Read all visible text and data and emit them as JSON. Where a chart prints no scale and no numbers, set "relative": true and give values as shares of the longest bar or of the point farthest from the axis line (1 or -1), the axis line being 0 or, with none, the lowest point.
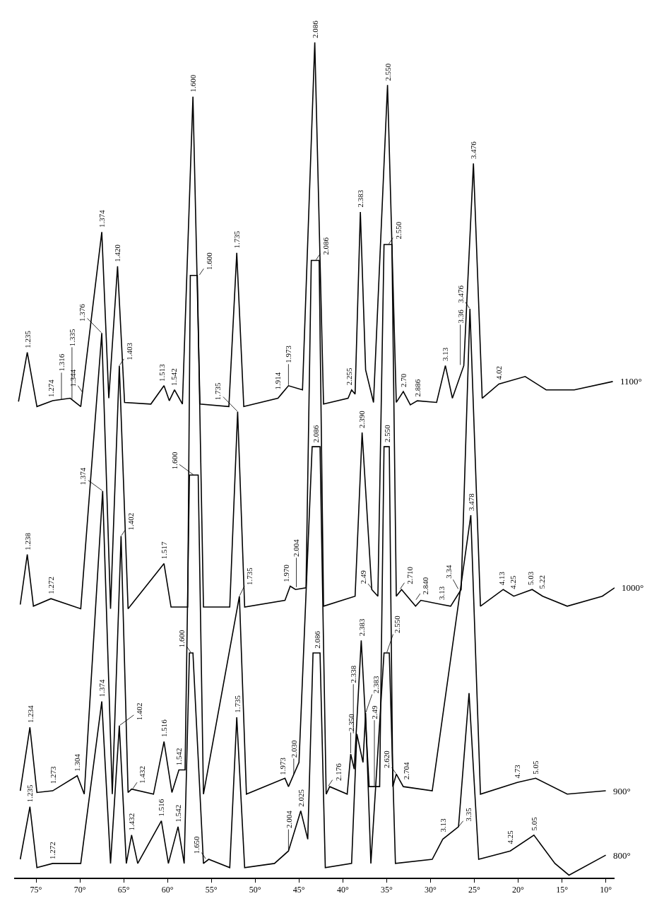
{
  "chart_data": {
    "type": "line",
    "relative": true,
    "legend": false,
    "marker": "none",
    "line_style": "solid",
    "xlim": [
      77.5,
      9
    ],
    "xticks": [
      {
        "value": 75,
        "label": "75°"
      },
      {
        "value": 70,
        "label": "70°"
      },
      {
        "value": 65,
        "label": "65°"
      },
      {
        "value": 60,
        "label": "60°"
      },
      {
        "value": 55,
        "label": "55°"
      },
      {
        "value": 50,
        "label": "50°"
      },
      {
        "value": 45,
        "label": "45°"
      },
      {
        "value": 40,
        "label": "40°"
      },
      {
        "value": 35,
        "label": "35°"
      },
      {
        "value": 30,
        "label": "30°"
      },
      {
        "value": 25,
        "label": "25°"
      },
      {
        "value": 20,
        "label": "20°"
      },
      {
        "value": 15,
        "label": "15°"
      },
      {
        "value": 10,
        "label": "10°"
      }
    ],
    "series": [
      {
        "name": "1100°",
        "color": "#000000",
        "x": [
          77.0,
          76.0,
          74.9,
          73.1,
          71.1,
          69.9,
          67.5,
          66.7,
          65.7,
          64.9,
          61.9,
          60.4,
          59.8,
          59.2,
          58.3,
          57.1,
          56.3,
          53.0,
          52.1,
          51.3,
          47.4,
          47.0,
          46.2,
          44.6,
          43.2,
          42.2,
          39.4,
          39.0,
          38.6,
          38.0,
          37.4,
          36.5,
          34.9,
          33.9,
          33.1,
          32.3,
          31.5,
          29.3,
          28.3,
          27.5,
          26.2,
          25.1,
          24.1,
          22.2,
          19.2,
          16.8,
          13.6,
          9.2
        ],
        "values": [
          0.57,
          0.629,
          0.564,
          0.571,
          0.574,
          0.564,
          0.773,
          0.574,
          0.732,
          0.569,
          0.567,
          0.589,
          0.571,
          0.584,
          0.567,
          0.935,
          0.567,
          0.564,
          0.748,
          0.564,
          0.574,
          0.579,
          0.589,
          0.584,
          1.0,
          0.567,
          0.574,
          0.584,
          0.579,
          0.797,
          0.608,
          0.569,
          0.949,
          0.569,
          0.582,
          0.566,
          0.571,
          0.569,
          0.613,
          0.574,
          0.613,
          0.855,
          0.574,
          0.591,
          0.6,
          0.584,
          0.584,
          0.594
        ]
      },
      {
        "name": "1000°",
        "color": "#000000",
        "x": [
          76.8,
          76.0,
          75.3,
          73.3,
          69.9,
          67.5,
          66.5,
          65.5,
          64.5,
          60.4,
          59.6,
          57.7,
          57.4,
          56.6,
          55.9,
          52.9,
          52.0,
          51.2,
          46.6,
          46.0,
          45.4,
          44.2,
          43.6,
          42.7,
          42.2,
          38.6,
          37.8,
          36.7,
          36.0,
          35.3,
          34.4,
          33.9,
          33.3,
          31.7,
          31.1,
          28.7,
          27.7,
          26.5,
          25.5,
          24.3,
          21.7,
          20.5,
          18.4,
          17.2,
          14.4,
          10.4,
          9.0
        ],
        "values": [
          0.327,
          0.387,
          0.325,
          0.334,
          0.322,
          0.652,
          0.322,
          0.613,
          0.322,
          0.376,
          0.324,
          0.324,
          0.721,
          0.721,
          0.324,
          0.324,
          0.558,
          0.324,
          0.332,
          0.349,
          0.345,
          0.347,
          0.739,
          0.739,
          0.325,
          0.337,
          0.533,
          0.345,
          0.337,
          0.758,
          0.758,
          0.337,
          0.345,
          0.325,
          0.332,
          0.327,
          0.325,
          0.345,
          0.681,
          0.325,
          0.345,
          0.337,
          0.345,
          0.337,
          0.325,
          0.337,
          0.347
        ]
      },
      {
        "name": "900°",
        "color": "#000000",
        "x": [
          76.8,
          75.7,
          74.9,
          73.1,
          70.3,
          69.5,
          67.4,
          66.3,
          65.3,
          64.5,
          64.1,
          61.6,
          60.4,
          59.5,
          58.7,
          58.0,
          57.5,
          56.5,
          55.9,
          51.8,
          51.0,
          46.6,
          46.2,
          45.0,
          43.5,
          42.6,
          41.9,
          41.5,
          39.5,
          39.1,
          38.7,
          37.9,
          37.0,
          35.8,
          35.3,
          34.7,
          34.3,
          33.9,
          33.1,
          29.8,
          25.4,
          24.3,
          20.1,
          18.0,
          14.4,
          10.0
        ],
        "values": [
          0.104,
          0.18,
          0.102,
          0.104,
          0.122,
          0.1,
          0.463,
          0.1,
          0.409,
          0.102,
          0.106,
          0.1,
          0.163,
          0.102,
          0.129,
          0.129,
          0.482,
          0.482,
          0.1,
          0.337,
          0.1,
          0.119,
          0.109,
          0.138,
          0.516,
          0.516,
          0.1,
          0.109,
          0.1,
          0.148,
          0.13,
          0.284,
          0.109,
          0.109,
          0.516,
          0.516,
          0.109,
          0.124,
          0.109,
          0.104,
          0.434,
          0.1,
          0.114,
          0.119,
          0.1,
          0.104
        ]
      },
      {
        "name": "800°",
        "color": "#000000",
        "x": [
          76.8,
          75.7,
          74.9,
          73.1,
          69.9,
          67.5,
          66.5,
          65.5,
          64.7,
          64.1,
          63.4,
          60.7,
          59.9,
          58.8,
          58.1,
          57.5,
          57.1,
          55.9,
          55.3,
          52.9,
          52.1,
          51.2,
          47.8,
          46.2,
          44.8,
          44.0,
          43.4,
          42.6,
          42.0,
          39.0,
          38.4,
          37.7,
          37.4,
          36.8,
          35.3,
          34.7,
          34.0,
          29.8,
          28.6,
          26.8,
          25.6,
          24.5,
          20.9,
          18.2,
          15.8,
          14.2,
          10.0
        ],
        "values": [
          0.022,
          0.085,
          0.012,
          0.017,
          0.017,
          0.211,
          0.017,
          0.182,
          0.017,
          0.051,
          0.017,
          0.068,
          0.017,
          0.061,
          0.017,
          0.269,
          0.269,
          0.017,
          0.022,
          0.012,
          0.192,
          0.012,
          0.017,
          0.032,
          0.08,
          0.046,
          0.269,
          0.269,
          0.012,
          0.017,
          0.172,
          0.138,
          0.197,
          0.017,
          0.269,
          0.269,
          0.017,
          0.022,
          0.046,
          0.061,
          0.221,
          0.022,
          0.032,
          0.051,
          0.017,
          0.003,
          0.027
        ]
      }
    ],
    "annotations": [
      {
        "text": "1.235",
        "x": 76.0,
        "y": 0.629
      },
      {
        "text": "1.274",
        "x": 73.3,
        "y": 0.57
      },
      {
        "text": "1.316",
        "x": 72.1,
        "y": 0.572
      },
      {
        "text": "1.335",
        "x": 70.9,
        "y": 0.572
      },
      {
        "text": "1.344",
        "x": 69.7,
        "y": 0.581
      },
      {
        "text": "1.374",
        "x": 67.5,
        "y": 0.773
      },
      {
        "text": "1.420",
        "x": 65.7,
        "y": 0.732
      },
      {
        "text": "1.513",
        "x": 60.6,
        "y": 0.589
      },
      {
        "text": "1.542",
        "x": 59.3,
        "y": 0.584
      },
      {
        "text": "1.600",
        "x": 57.1,
        "y": 0.935
      },
      {
        "text": "1.735",
        "x": 52.1,
        "y": 0.748
      },
      {
        "text": "1.914",
        "x": 47.4,
        "y": 0.579
      },
      {
        "text": "1.973",
        "x": 46.2,
        "y": 0.589
      },
      {
        "text": "2.086",
        "x": 43.2,
        "y": 1.0
      },
      {
        "text": "2.255",
        "x": 39.3,
        "y": 0.584
      },
      {
        "text": "2.383",
        "x": 38.0,
        "y": 0.797
      },
      {
        "text": "2.550",
        "x": 34.9,
        "y": 0.949
      },
      {
        "text": "2.70",
        "x": 33.1,
        "y": 0.582
      },
      {
        "text": "2.886",
        "x": 31.5,
        "y": 0.571
      },
      {
        "text": "3.13",
        "x": 28.3,
        "y": 0.613
      },
      {
        "text": "3.36",
        "x": 26.6,
        "y": 0.613
      },
      {
        "text": "3.476",
        "x": 25.1,
        "y": 0.855
      },
      {
        "text": "4.02",
        "x": 22.2,
        "y": 0.591
      },
      {
        "text": "1.238",
        "x": 76.0,
        "y": 0.387
      },
      {
        "text": "1.272",
        "x": 73.3,
        "y": 0.334
      },
      {
        "text": "1.376",
        "x": 67.5,
        "y": 0.652
      },
      {
        "text": "1.403",
        "x": 65.5,
        "y": 0.613
      },
      {
        "text": "1.517",
        "x": 60.4,
        "y": 0.376
      },
      {
        "text": "1.600",
        "x": 56.4,
        "y": 0.721
      },
      {
        "text": "1.735",
        "x": 52.0,
        "y": 0.558
      },
      {
        "text": "1.970",
        "x": 46.5,
        "y": 0.349
      },
      {
        "text": "2.004",
        "x": 45.3,
        "y": 0.347
      },
      {
        "text": "2.086",
        "x": 43.1,
        "y": 0.739
      },
      {
        "text": "2.390",
        "x": 37.8,
        "y": 0.533
      },
      {
        "text": "2.49",
        "x": 36.6,
        "y": 0.345
      },
      {
        "text": "2.550",
        "x": 34.8,
        "y": 0.758
      },
      {
        "text": "2.710",
        "x": 33.5,
        "y": 0.345
      },
      {
        "text": "2.840",
        "x": 31.7,
        "y": 0.332
      },
      {
        "text": "3.13",
        "x": 28.7,
        "y": 0.327
      },
      {
        "text": "3.34",
        "x": 26.8,
        "y": 0.345
      },
      {
        "text": "3.476",
        "x": 25.5,
        "y": 0.681
      },
      {
        "text": "4.13",
        "x": 21.9,
        "y": 0.345
      },
      {
        "text": "4.25",
        "x": 20.6,
        "y": 0.337
      },
      {
        "text": "5.03",
        "x": 18.6,
        "y": 0.345
      },
      {
        "text": "5.22",
        "x": 17.3,
        "y": 0.337
      },
      {
        "text": "1.234",
        "x": 75.7,
        "y": 0.18
      },
      {
        "text": "1.273",
        "x": 73.1,
        "y": 0.104
      },
      {
        "text": "1.304",
        "x": 70.3,
        "y": 0.122
      },
      {
        "text": "1.374",
        "x": 67.4,
        "y": 0.463
      },
      {
        "text": "1.402",
        "x": 65.3,
        "y": 0.409
      },
      {
        "text": "1.432",
        "x": 64.0,
        "y": 0.106
      },
      {
        "text": "1.516",
        "x": 60.4,
        "y": 0.163
      },
      {
        "text": "1.542",
        "x": 58.7,
        "y": 0.129
      },
      {
        "text": "1.600",
        "x": 57.0,
        "y": 0.482
      },
      {
        "text": "1.735",
        "x": 51.8,
        "y": 0.337
      },
      {
        "text": "1.973",
        "x": 46.9,
        "y": 0.118
      },
      {
        "text": "2.030",
        "x": 45.6,
        "y": 0.1235
      },
      {
        "text": "2.086",
        "x": 43.1,
        "y": 0.516
      },
      {
        "text": "2.176",
        "x": 41.7,
        "y": 0.109
      },
      {
        "text": "2.350",
        "x": 39.1,
        "y": 0.148
      },
      {
        "text": "2.383",
        "x": 37.9,
        "y": 0.284
      },
      {
        "text": "2.49",
        "x": 36.4,
        "y": 0.109
      },
      {
        "text": "2.550",
        "x": 35.0,
        "y": 0.516
      },
      {
        "text": "2.620",
        "x": 33.9,
        "y": 0.124
      },
      {
        "text": "2.704",
        "x": 32.8,
        "y": 0.109
      },
      {
        "text": "3.478",
        "x": 25.4,
        "y": 0.434
      },
      {
        "text": "4.73",
        "x": 20.1,
        "y": 0.114
      },
      {
        "text": "5.05",
        "x": 18.0,
        "y": 0.119
      },
      {
        "text": "1.235",
        "x": 75.7,
        "y": 0.085
      },
      {
        "text": "1.272",
        "x": 73.1,
        "y": 0.017
      },
      {
        "text": "1.374",
        "x": 67.5,
        "y": 0.211
      },
      {
        "text": "1.402",
        "x": 65.5,
        "y": 0.182
      },
      {
        "text": "1.432",
        "x": 64.1,
        "y": 0.051
      },
      {
        "text": "1.516",
        "x": 60.7,
        "y": 0.068
      },
      {
        "text": "1.542",
        "x": 58.8,
        "y": 0.061
      },
      {
        "text": "1.600",
        "x": 57.3,
        "y": 0.269
      },
      {
        "text": "1.650",
        "x": 55.6,
        "y": 0.022
      },
      {
        "text": "1.735",
        "x": 52.1,
        "y": 0.192
      },
      {
        "text": "2.004",
        "x": 46.2,
        "y": 0.032
      },
      {
        "text": "2.025",
        "x": 44.8,
        "y": 0.08
      },
      {
        "text": "2.086",
        "x": 43.0,
        "y": 0.269
      },
      {
        "text": "2.338",
        "x": 38.8,
        "y": 0.172
      },
      {
        "text": "2.383",
        "x": 37.4,
        "y": 0.197
      },
      {
        "text": "2.550",
        "x": 35.0,
        "y": 0.269
      },
      {
        "text": "3.13",
        "x": 28.6,
        "y": 0.046
      },
      {
        "text": "3.35",
        "x": 26.8,
        "y": 0.061
      },
      {
        "text": "4.25",
        "x": 20.9,
        "y": 0.032
      },
      {
        "text": "5.05",
        "x": 18.2,
        "y": 0.051
      }
    ]
  }
}
